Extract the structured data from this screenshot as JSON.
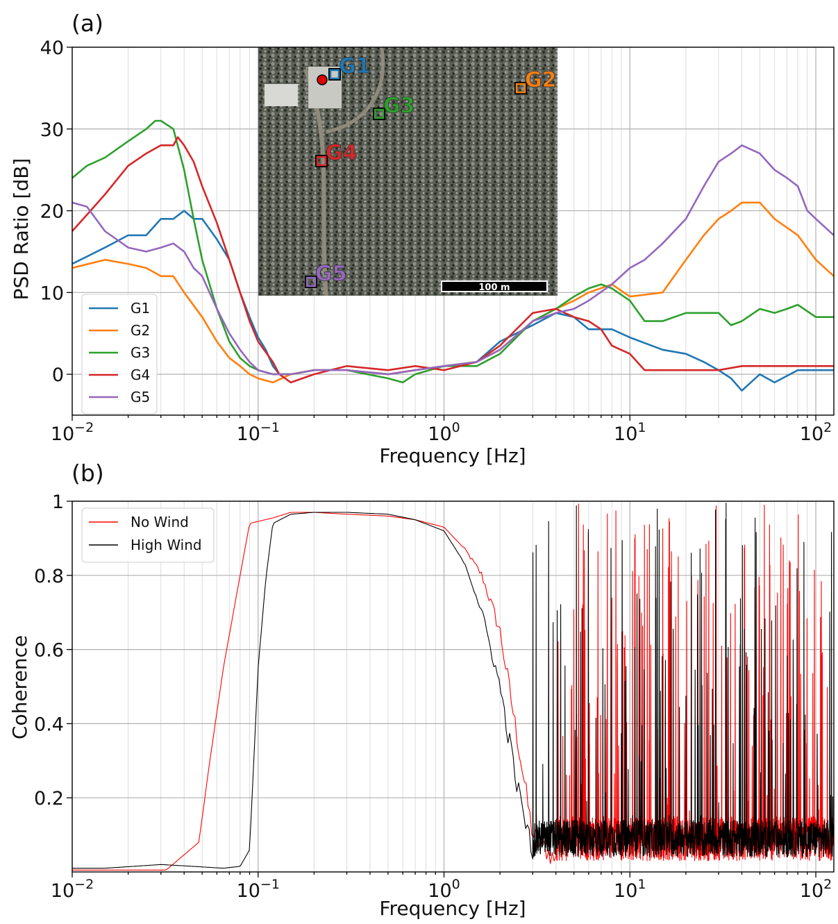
{
  "chart_data": [
    {
      "panel_label": "(a)",
      "type": "line",
      "xlabel": "Frequency [Hz]",
      "ylabel": "PSD Ratio [dB]",
      "xscale": "log",
      "xlim": [
        0.01,
        125
      ],
      "ylim": [
        -5,
        40
      ],
      "yticks": [
        0,
        10,
        20,
        30,
        40
      ],
      "xticks": [
        {
          "value": 0.01,
          "base": "10",
          "exp": "−2"
        },
        {
          "value": 0.1,
          "base": "10",
          "exp": "−1"
        },
        {
          "value": 1,
          "base": "10",
          "exp": "0"
        },
        {
          "value": 10,
          "base": "10",
          "exp": "1"
        },
        {
          "value": 100,
          "base": "10",
          "exp": "2"
        }
      ],
      "grid": true,
      "legend": "lower-left",
      "inset": {
        "description": "aerial photo",
        "scale_bar": "100 m",
        "markers": [
          {
            "name": "G1",
            "color": "#1f77b4"
          },
          {
            "name": "G2",
            "color": "#ff7f0e"
          },
          {
            "name": "G3",
            "color": "#2ca02c"
          },
          {
            "name": "G4",
            "color": "#d62728"
          },
          {
            "name": "G5",
            "color": "#9467bd"
          }
        ]
      },
      "series": [
        {
          "name": "G1",
          "color": "#1f77b4",
          "x": [
            0.01,
            0.015,
            0.02,
            0.025,
            0.03,
            0.035,
            0.04,
            0.045,
            0.05,
            0.06,
            0.07,
            0.08,
            0.09,
            0.1,
            0.11,
            0.12,
            0.13,
            0.15,
            0.2,
            0.3,
            0.5,
            0.7,
            1.0,
            1.5,
            2,
            3,
            4,
            5,
            6,
            8,
            10,
            15,
            20,
            25,
            30,
            35,
            40,
            50,
            60,
            80,
            125
          ],
          "y": [
            13.5,
            15.5,
            17,
            17,
            19,
            19,
            20,
            19,
            19,
            16.5,
            14,
            10,
            7,
            4.5,
            3,
            1,
            0,
            0,
            0.5,
            0.5,
            0,
            0.5,
            1,
            1.5,
            4,
            6,
            7.5,
            7,
            5.5,
            5.5,
            4.5,
            3,
            2.5,
            1.5,
            0.5,
            -0.5,
            -2,
            0,
            -1,
            0.5,
            0.5
          ]
        },
        {
          "name": "G2",
          "color": "#ff7f0e",
          "x": [
            0.01,
            0.015,
            0.02,
            0.025,
            0.03,
            0.035,
            0.04,
            0.05,
            0.06,
            0.07,
            0.08,
            0.09,
            0.1,
            0.12,
            0.15,
            0.2,
            0.3,
            0.5,
            0.7,
            1.0,
            1.5,
            2,
            3,
            4,
            5,
            6,
            8,
            10,
            15,
            20,
            25,
            30,
            35,
            40,
            50,
            60,
            80,
            100,
            125
          ],
          "y": [
            13,
            14,
            13.5,
            13,
            12,
            12,
            10,
            7,
            4,
            2,
            1,
            0,
            -0.5,
            -1,
            0,
            0.5,
            0.5,
            0,
            0.5,
            1,
            1.5,
            3,
            6.5,
            8,
            9,
            10,
            11,
            9.5,
            10,
            14,
            17,
            19,
            20,
            21,
            21,
            19,
            17,
            14,
            12
          ]
        },
        {
          "name": "G3",
          "color": "#2ca02c",
          "x": [
            0.01,
            0.012,
            0.015,
            0.02,
            0.025,
            0.028,
            0.03,
            0.035,
            0.04,
            0.045,
            0.05,
            0.06,
            0.07,
            0.08,
            0.09,
            0.1,
            0.12,
            0.15,
            0.2,
            0.3,
            0.5,
            0.6,
            0.7,
            1.0,
            1.5,
            2,
            3,
            4,
            5,
            6,
            7,
            8,
            10,
            12,
            15,
            20,
            30,
            35,
            40,
            50,
            60,
            70,
            80,
            100,
            125
          ],
          "y": [
            24,
            25.5,
            26.5,
            28.5,
            30,
            31,
            31,
            30,
            25,
            19,
            14,
            8,
            4,
            2,
            1,
            0.5,
            0,
            0,
            0.5,
            0.5,
            -0.5,
            -1,
            0,
            1,
            1,
            2.5,
            6.5,
            8,
            9.5,
            10.5,
            11,
            10.5,
            9,
            6.5,
            6.5,
            7.5,
            7.5,
            6,
            6.5,
            8,
            7.5,
            8,
            8.5,
            7,
            7
          ]
        },
        {
          "name": "G4",
          "color": "#d62728",
          "x": [
            0.01,
            0.012,
            0.015,
            0.02,
            0.025,
            0.03,
            0.035,
            0.037,
            0.04,
            0.045,
            0.05,
            0.06,
            0.07,
            0.08,
            0.09,
            0.1,
            0.12,
            0.13,
            0.15,
            0.2,
            0.3,
            0.5,
            0.7,
            1.0,
            1.5,
            2,
            3,
            4,
            5,
            6,
            7,
            8,
            10,
            12,
            15,
            20,
            25,
            30,
            40,
            50,
            60,
            80,
            100,
            125
          ],
          "y": [
            17.5,
            19.5,
            22,
            25.5,
            27,
            28,
            28,
            29,
            28,
            26,
            23,
            18.5,
            14,
            10,
            6.5,
            4,
            1.5,
            0,
            -1,
            0,
            1,
            0.5,
            1,
            0.5,
            1.5,
            3.5,
            7.5,
            8,
            7,
            6.5,
            5.5,
            3.5,
            2.5,
            0.5,
            0.5,
            0.5,
            0.5,
            0.5,
            1,
            1,
            1,
            1,
            1,
            1
          ]
        },
        {
          "name": "G5",
          "color": "#9467bd",
          "x": [
            0.01,
            0.012,
            0.015,
            0.02,
            0.025,
            0.03,
            0.035,
            0.04,
            0.045,
            0.05,
            0.06,
            0.07,
            0.08,
            0.09,
            0.1,
            0.12,
            0.15,
            0.2,
            0.3,
            0.5,
            0.7,
            1.0,
            1.5,
            2,
            3,
            4,
            5,
            6,
            8,
            10,
            12,
            15,
            20,
            25,
            30,
            35,
            40,
            50,
            60,
            70,
            80,
            90,
            100,
            125
          ],
          "y": [
            21,
            20.5,
            17.5,
            15.5,
            15,
            15.5,
            16,
            15,
            13,
            12,
            8,
            5,
            3,
            1.5,
            0.5,
            0,
            0,
            0.5,
            0.5,
            0,
            0.5,
            1,
            1.5,
            3,
            6.5,
            7.5,
            8,
            9,
            11,
            13,
            14,
            16,
            19,
            23,
            26,
            27,
            28,
            27,
            25,
            24,
            23,
            20,
            19,
            17
          ]
        }
      ]
    },
    {
      "panel_label": "(b)",
      "type": "line",
      "xlabel": "Frequency [Hz]",
      "ylabel": "Coherence",
      "xscale": "log",
      "xlim": [
        0.01,
        125
      ],
      "ylim": [
        0,
        1.0
      ],
      "yticks": [
        0.2,
        0.4,
        0.6,
        0.8,
        1.0
      ],
      "xticks": [
        {
          "value": 0.01,
          "base": "10",
          "exp": "−2"
        },
        {
          "value": 0.1,
          "base": "10",
          "exp": "−1"
        },
        {
          "value": 1,
          "base": "10",
          "exp": "0"
        },
        {
          "value": 10,
          "base": "10",
          "exp": "1"
        },
        {
          "value": 100,
          "base": "10",
          "exp": "2"
        }
      ],
      "grid": true,
      "legend": "upper-left",
      "series": [
        {
          "name": "No Wind",
          "color": "#ff0000",
          "x": [
            0.01,
            0.032,
            0.048,
            0.055,
            0.065,
            0.08,
            0.09,
            0.12,
            0.15,
            0.2,
            0.3,
            0.5,
            0.7,
            1.0,
            1.3,
            1.6,
            2.0,
            2.5,
            3.0,
            4.0
          ],
          "y": [
            0.005,
            0.005,
            0.08,
            0.3,
            0.55,
            0.8,
            0.94,
            0.955,
            0.97,
            0.97,
            0.965,
            0.96,
            0.95,
            0.93,
            0.87,
            0.8,
            0.65,
            0.35,
            0.1,
            0.03
          ],
          "noise_from": 4.0,
          "noise_baseline": 0.03,
          "noise_spread": 0.12,
          "spike_prob": 0.1
        },
        {
          "name": "High Wind",
          "color": "#000000",
          "x": [
            0.01,
            0.015,
            0.03,
            0.045,
            0.065,
            0.08,
            0.09,
            0.1,
            0.11,
            0.12,
            0.15,
            0.2,
            0.3,
            0.5,
            0.7,
            1.0,
            1.3,
            1.6,
            2.0,
            2.5,
            3.0
          ],
          "y": [
            0.01,
            0.01,
            0.02,
            0.015,
            0.01,
            0.015,
            0.06,
            0.55,
            0.79,
            0.94,
            0.965,
            0.97,
            0.97,
            0.965,
            0.95,
            0.92,
            0.83,
            0.7,
            0.5,
            0.22,
            0.05
          ],
          "noise_from": 3.0,
          "noise_baseline": 0.04,
          "noise_spread": 0.1,
          "spike_prob": 0.06
        }
      ]
    }
  ]
}
